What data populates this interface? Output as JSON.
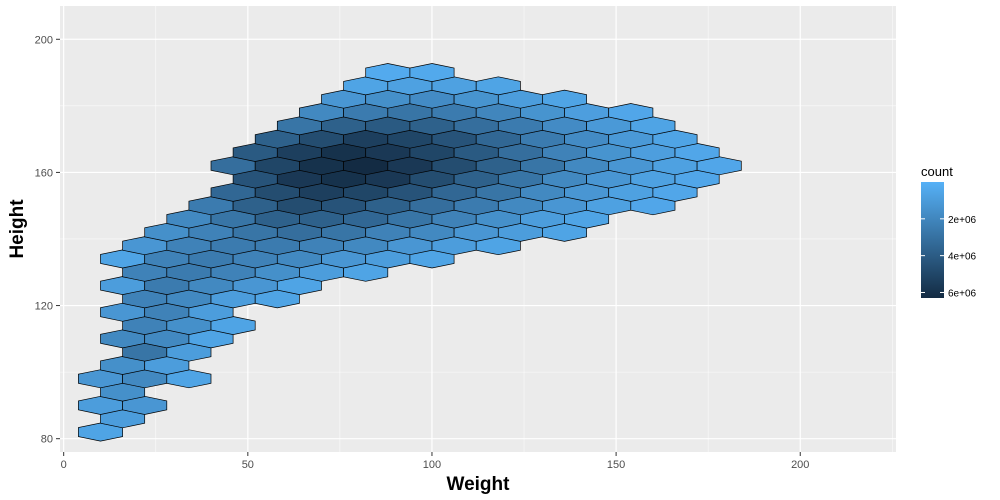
{
  "chart_data": {
    "type": "hexbin",
    "title": "",
    "xlabel": "Weight",
    "ylabel": "Height",
    "xlim": [
      -1,
      226
    ],
    "ylim": [
      76,
      210
    ],
    "x_ticks": [
      0,
      50,
      100,
      150,
      200
    ],
    "y_ticks": [
      80,
      120,
      160,
      200
    ],
    "grid": true,
    "legend": {
      "title": "count",
      "position": "right",
      "ticks": [
        {
          "value": 2000000,
          "label": "2e+06"
        },
        {
          "value": 4000000,
          "label": "4e+06"
        },
        {
          "value": 6000000,
          "label": "6e+06"
        }
      ],
      "range": [
        1,
        6300000
      ]
    },
    "colors": {
      "low": "#56B1F7",
      "high": "#132B43",
      "panel": "#EBEBEB",
      "grid_major": "#FFFFFF",
      "hex_outline": "#000000"
    },
    "hex_dx": 12.0,
    "hex_dy": 4.0,
    "rows": [
      {
        "y": 82,
        "bins": [
          [
            10,
            0.1
          ]
        ]
      },
      {
        "y": 86,
        "bins": [
          [
            16,
            0.15
          ]
        ]
      },
      {
        "y": 90,
        "bins": [
          [
            10,
            0.15
          ],
          [
            22,
            0.2
          ]
        ]
      },
      {
        "y": 94,
        "bins": [
          [
            16,
            0.25
          ]
        ]
      },
      {
        "y": 98,
        "bins": [
          [
            10,
            0.2
          ],
          [
            22,
            0.3
          ],
          [
            34,
            0.1
          ]
        ]
      },
      {
        "y": 102,
        "bins": [
          [
            16,
            0.25
          ],
          [
            28,
            0.15
          ]
        ]
      },
      {
        "y": 106,
        "bins": [
          [
            22,
            0.45
          ],
          [
            34,
            0.15
          ]
        ]
      },
      {
        "y": 110,
        "bins": [
          [
            16,
            0.3
          ],
          [
            28,
            0.3
          ],
          [
            40,
            0.1
          ]
        ]
      },
      {
        "y": 114,
        "bins": [
          [
            22,
            0.35
          ],
          [
            34,
            0.25
          ],
          [
            46,
            0.1
          ]
        ]
      },
      {
        "y": 118,
        "bins": [
          [
            16,
            0.2
          ],
          [
            28,
            0.35
          ],
          [
            40,
            0.15
          ]
        ]
      },
      {
        "y": 122,
        "bins": [
          [
            22,
            0.35
          ],
          [
            34,
            0.3
          ],
          [
            46,
            0.15
          ],
          [
            58,
            0.1
          ]
        ]
      },
      {
        "y": 126,
        "bins": [
          [
            16,
            0.15
          ],
          [
            28,
            0.4
          ],
          [
            40,
            0.3
          ],
          [
            52,
            0.2
          ],
          [
            64,
            0.1
          ]
        ]
      },
      {
        "y": 130,
        "bins": [
          [
            22,
            0.35
          ],
          [
            34,
            0.4
          ],
          [
            46,
            0.35
          ],
          [
            58,
            0.25
          ],
          [
            70,
            0.15
          ],
          [
            82,
            0.1
          ]
        ]
      },
      {
        "y": 134,
        "bins": [
          [
            16,
            0.1
          ],
          [
            28,
            0.35
          ],
          [
            40,
            0.4
          ],
          [
            52,
            0.35
          ],
          [
            64,
            0.3
          ],
          [
            76,
            0.2
          ],
          [
            88,
            0.15
          ],
          [
            100,
            0.1
          ]
        ]
      },
      {
        "y": 138,
        "bins": [
          [
            22,
            0.2
          ],
          [
            34,
            0.35
          ],
          [
            46,
            0.4
          ],
          [
            58,
            0.4
          ],
          [
            70,
            0.35
          ],
          [
            82,
            0.3
          ],
          [
            94,
            0.2
          ],
          [
            106,
            0.15
          ],
          [
            118,
            0.1
          ]
        ]
      },
      {
        "y": 142,
        "bins": [
          [
            28,
            0.25
          ],
          [
            40,
            0.35
          ],
          [
            52,
            0.45
          ],
          [
            64,
            0.5
          ],
          [
            76,
            0.45
          ],
          [
            88,
            0.35
          ],
          [
            100,
            0.3
          ],
          [
            112,
            0.2
          ],
          [
            124,
            0.15
          ],
          [
            136,
            0.1
          ]
        ]
      },
      {
        "y": 146,
        "bins": [
          [
            34,
            0.3
          ],
          [
            46,
            0.45
          ],
          [
            58,
            0.6
          ],
          [
            70,
            0.6
          ],
          [
            82,
            0.55
          ],
          [
            94,
            0.45
          ],
          [
            106,
            0.35
          ],
          [
            118,
            0.25
          ],
          [
            130,
            0.15
          ],
          [
            142,
            0.1
          ]
        ]
      },
      {
        "y": 150,
        "bins": [
          [
            40,
            0.4
          ],
          [
            52,
            0.6
          ],
          [
            64,
            0.75
          ],
          [
            76,
            0.7
          ],
          [
            88,
            0.6
          ],
          [
            100,
            0.5
          ],
          [
            112,
            0.4
          ],
          [
            124,
            0.3
          ],
          [
            136,
            0.2
          ],
          [
            148,
            0.12
          ],
          [
            160,
            0.08
          ]
        ]
      },
      {
        "y": 154,
        "bins": [
          [
            46,
            0.55
          ],
          [
            58,
            0.75
          ],
          [
            70,
            0.85
          ],
          [
            82,
            0.8
          ],
          [
            94,
            0.7
          ],
          [
            106,
            0.55
          ],
          [
            118,
            0.45
          ],
          [
            130,
            0.3
          ],
          [
            142,
            0.2
          ],
          [
            154,
            0.12
          ],
          [
            166,
            0.08
          ]
        ]
      },
      {
        "y": 158,
        "bins": [
          [
            52,
            0.7
          ],
          [
            64,
            0.9
          ],
          [
            76,
            0.95
          ],
          [
            88,
            0.9
          ],
          [
            100,
            0.75
          ],
          [
            112,
            0.6
          ],
          [
            124,
            0.45
          ],
          [
            136,
            0.3
          ],
          [
            148,
            0.2
          ],
          [
            160,
            0.12
          ],
          [
            172,
            0.08
          ]
        ]
      },
      {
        "y": 162,
        "bins": [
          [
            46,
            0.5
          ],
          [
            58,
            0.8
          ],
          [
            70,
            0.95
          ],
          [
            82,
            1.0
          ],
          [
            94,
            0.9
          ],
          [
            106,
            0.75
          ],
          [
            118,
            0.6
          ],
          [
            130,
            0.45
          ],
          [
            142,
            0.3
          ],
          [
            154,
            0.2
          ],
          [
            166,
            0.12
          ],
          [
            178,
            0.08
          ]
        ]
      },
      {
        "y": 166,
        "bins": [
          [
            52,
            0.65
          ],
          [
            64,
            0.85
          ],
          [
            76,
            0.95
          ],
          [
            88,
            0.9
          ],
          [
            100,
            0.8
          ],
          [
            112,
            0.65
          ],
          [
            124,
            0.5
          ],
          [
            136,
            0.35
          ],
          [
            148,
            0.22
          ],
          [
            160,
            0.14
          ],
          [
            172,
            0.08
          ]
        ]
      },
      {
        "y": 170,
        "bins": [
          [
            58,
            0.6
          ],
          [
            70,
            0.75
          ],
          [
            82,
            0.85
          ],
          [
            94,
            0.8
          ],
          [
            106,
            0.7
          ],
          [
            118,
            0.55
          ],
          [
            130,
            0.4
          ],
          [
            142,
            0.28
          ],
          [
            154,
            0.18
          ],
          [
            166,
            0.1
          ]
        ]
      },
      {
        "y": 174,
        "bins": [
          [
            64,
            0.45
          ],
          [
            76,
            0.6
          ],
          [
            88,
            0.65
          ],
          [
            100,
            0.6
          ],
          [
            112,
            0.5
          ],
          [
            124,
            0.4
          ],
          [
            136,
            0.28
          ],
          [
            148,
            0.18
          ],
          [
            160,
            0.1
          ]
        ]
      },
      {
        "y": 178,
        "bins": [
          [
            70,
            0.3
          ],
          [
            82,
            0.4
          ],
          [
            94,
            0.45
          ],
          [
            106,
            0.4
          ],
          [
            118,
            0.32
          ],
          [
            130,
            0.22
          ],
          [
            142,
            0.14
          ],
          [
            154,
            0.08
          ]
        ]
      },
      {
        "y": 182,
        "bins": [
          [
            76,
            0.2
          ],
          [
            88,
            0.25
          ],
          [
            100,
            0.28
          ],
          [
            112,
            0.22
          ],
          [
            124,
            0.15
          ],
          [
            136,
            0.1
          ]
        ]
      },
      {
        "y": 186,
        "bins": [
          [
            82,
            0.1
          ],
          [
            94,
            0.12
          ],
          [
            106,
            0.12
          ],
          [
            118,
            0.1
          ]
        ]
      },
      {
        "y": 190,
        "bins": [
          [
            88,
            0.05
          ],
          [
            100,
            0.06
          ]
        ]
      }
    ]
  }
}
